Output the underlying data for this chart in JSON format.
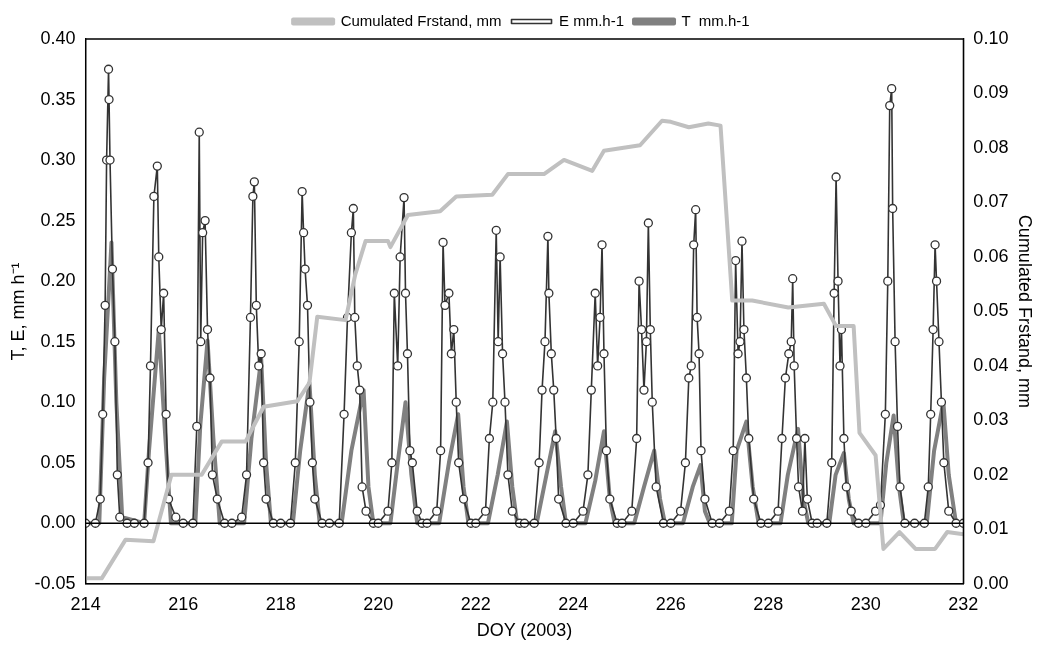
{
  "chart_data": {
    "type": "line",
    "xlabel": "DOY (2003)",
    "ylabel": "T, E, mm h⁻¹",
    "y2label": "Cumulated Frstand, mm",
    "xlim": [
      214,
      232
    ],
    "xticks": [
      214,
      216,
      218,
      220,
      222,
      224,
      226,
      228,
      230,
      232
    ],
    "ylim": [
      -0.05,
      0.4
    ],
    "yticks": [
      {
        "value": -0.05,
        "label": "-0.05"
      },
      {
        "value": 0,
        "label": "0.00"
      },
      {
        "value": 0.05,
        "label": "0.05"
      },
      {
        "value": 0.1,
        "label": "0.10"
      },
      {
        "value": 0.15,
        "label": "0.15"
      },
      {
        "value": 0.2,
        "label": "0.20"
      },
      {
        "value": 0.25,
        "label": "0.25"
      },
      {
        "value": 0.3,
        "label": "0.30"
      },
      {
        "value": 0.35,
        "label": "0.35"
      },
      {
        "value": 0.4,
        "label": "0.40"
      }
    ],
    "y2lim": [
      0,
      0.1
    ],
    "y2ticks": [
      {
        "value": 0,
        "label": "0.00"
      },
      {
        "value": 0.01,
        "label": "0.01"
      },
      {
        "value": 0.02,
        "label": "0.02"
      },
      {
        "value": 0.03,
        "label": "0.03"
      },
      {
        "value": 0.04,
        "label": "0.04"
      },
      {
        "value": 0.05,
        "label": "0.05"
      },
      {
        "value": 0.06,
        "label": "0.06"
      },
      {
        "value": 0.07,
        "label": "0.07"
      },
      {
        "value": 0.08,
        "label": "0.08"
      },
      {
        "value": 0.09,
        "label": "0.09"
      },
      {
        "value": 0.1,
        "label": "0.10"
      }
    ],
    "grid": false,
    "legend": "top",
    "line_style": "solid",
    "ref_lines": [
      {
        "axis": "y",
        "value": 0,
        "color": "#000000"
      }
    ],
    "series": [
      {
        "name": "T  mm.h-1",
        "color": "#808080",
        "marker": "none",
        "x": [
          214,
          214.28,
          214.38,
          214.53,
          214.63,
          214.75,
          215.2,
          215.3,
          215.5,
          215.62,
          215.75,
          216.25,
          216.35,
          216.5,
          216.62,
          216.75,
          217.25,
          217.4,
          217.6,
          217.7,
          217.8,
          218.25,
          218.4,
          218.59,
          218.7,
          218.8,
          219.25,
          219.45,
          219.7,
          219.8,
          219.9,
          220.25,
          220.4,
          220.56,
          220.68,
          220.8,
          221.25,
          221.45,
          221.64,
          221.75,
          221.85,
          222.25,
          222.45,
          222.64,
          222.75,
          222.85,
          223.25,
          223.45,
          223.63,
          223.75,
          223.85,
          224.25,
          224.45,
          224.63,
          224.75,
          224.85,
          225.25,
          225.45,
          225.66,
          225.78,
          225.88,
          226.25,
          226.45,
          226.61,
          226.7,
          226.8,
          227.25,
          227.35,
          227.55,
          227.68,
          227.8,
          228.25,
          228.4,
          228.61,
          228.72,
          228.82,
          229.25,
          229.38,
          229.55,
          229.65,
          229.75,
          230.3,
          230.42,
          230.57,
          230.68,
          230.78,
          231.25,
          231.4,
          231.59,
          231.7,
          231.85,
          232
        ],
        "values": [
          0,
          0,
          0.12,
          0.232,
          0.1,
          0.005,
          0,
          0.06,
          0.16,
          0.08,
          0,
          0,
          0.08,
          0.151,
          0.07,
          0,
          0,
          0.07,
          0.136,
          0.05,
          0,
          0,
          0.06,
          0.116,
          0.04,
          0,
          0,
          0.06,
          0.11,
          0.03,
          0,
          0,
          0.05,
          0.1,
          0.04,
          0,
          0,
          0.05,
          0.09,
          0.03,
          0,
          0,
          0.04,
          0.084,
          0.03,
          0,
          0,
          0.04,
          0.076,
          0.03,
          0,
          0,
          0.035,
          0.076,
          0.02,
          0,
          0,
          0.03,
          0.06,
          0.02,
          0,
          0,
          0.03,
          0.048,
          0.01,
          0,
          0,
          0.06,
          0.084,
          0.03,
          0,
          0,
          0.04,
          0.078,
          0.02,
          0,
          0,
          0.04,
          0.058,
          0.02,
          0,
          0,
          0.05,
          0.089,
          0.03,
          0,
          0,
          0.06,
          0.1,
          0.04,
          0,
          0
        ]
      },
      {
        "name": "E mm.h-1",
        "color": "#333333",
        "marker": "circle",
        "x": [
          214,
          214.2,
          214.3,
          214.35,
          214.4,
          214.43,
          214.47,
          214.48,
          214.5,
          214.55,
          214.6,
          214.65,
          214.7,
          214.85,
          215,
          215.2,
          215.28,
          215.33,
          215.4,
          215.47,
          215.5,
          215.55,
          215.6,
          215.65,
          215.7,
          215.85,
          216,
          216.2,
          216.28,
          216.33,
          216.36,
          216.4,
          216.45,
          216.5,
          216.55,
          216.6,
          216.7,
          216.85,
          217,
          217.2,
          217.3,
          217.38,
          217.43,
          217.46,
          217.5,
          217.55,
          217.6,
          217.65,
          217.7,
          217.85,
          218,
          218.2,
          218.3,
          218.38,
          218.44,
          218.47,
          218.5,
          218.55,
          218.6,
          218.65,
          218.7,
          218.85,
          219,
          219.2,
          219.3,
          219.37,
          219.45,
          219.49,
          219.52,
          219.57,
          219.62,
          219.67,
          219.75,
          219.9,
          220,
          220.2,
          220.28,
          220.33,
          220.4,
          220.45,
          220.53,
          220.56,
          220.6,
          220.65,
          220.7,
          220.8,
          220.9,
          221,
          221.2,
          221.28,
          221.33,
          221.37,
          221.45,
          221.5,
          221.55,
          221.6,
          221.65,
          221.75,
          221.9,
          222,
          222.2,
          222.28,
          222.35,
          222.42,
          222.46,
          222.5,
          222.55,
          222.6,
          222.66,
          222.75,
          222.9,
          223,
          223.2,
          223.3,
          223.36,
          223.42,
          223.48,
          223.5,
          223.55,
          223.6,
          223.65,
          223.7,
          223.85,
          224,
          224.2,
          224.3,
          224.37,
          224.45,
          224.5,
          224.55,
          224.59,
          224.63,
          224.68,
          224.75,
          224.9,
          225,
          225.2,
          225.3,
          225.35,
          225.4,
          225.45,
          225.5,
          225.54,
          225.58,
          225.62,
          225.7,
          225.85,
          226,
          226.2,
          226.3,
          226.37,
          226.42,
          226.47,
          226.51,
          226.54,
          226.58,
          226.62,
          226.7,
          226.85,
          227,
          227.2,
          227.28,
          227.33,
          227.38,
          227.42,
          227.46,
          227.5,
          227.55,
          227.6,
          227.7,
          227.85,
          228,
          228.2,
          228.28,
          228.35,
          228.42,
          228.47,
          228.5,
          228.53,
          228.58,
          228.62,
          228.7,
          228.75,
          228.8,
          228.9,
          229,
          229.2,
          229.3,
          229.35,
          229.39,
          229.43,
          229.47,
          229.5,
          229.55,
          229.6,
          229.7,
          229.85,
          230,
          230.2,
          230.3,
          230.4,
          230.45,
          230.49,
          230.53,
          230.55,
          230.6,
          230.65,
          230.7,
          230.8,
          231,
          231.2,
          231.28,
          231.33,
          231.38,
          231.42,
          231.45,
          231.5,
          231.55,
          231.6,
          231.7,
          231.85,
          232
        ],
        "values": [
          0,
          0,
          0.02,
          0.09,
          0.18,
          0.3,
          0.375,
          0.35,
          0.3,
          0.21,
          0.15,
          0.04,
          0.005,
          0,
          0,
          0,
          0.05,
          0.13,
          0.27,
          0.295,
          0.22,
          0.16,
          0.19,
          0.09,
          0.02,
          0.005,
          0,
          0,
          0.08,
          0.323,
          0.15,
          0.24,
          0.25,
          0.16,
          0.12,
          0.04,
          0.02,
          0,
          0,
          0.005,
          0.04,
          0.17,
          0.27,
          0.282,
          0.18,
          0.13,
          0.14,
          0.05,
          0.02,
          0,
          0,
          0,
          0.05,
          0.15,
          0.274,
          0.24,
          0.21,
          0.18,
          0.1,
          0.05,
          0.02,
          0,
          0,
          0,
          0.09,
          0.17,
          0.24,
          0.26,
          0.17,
          0.13,
          0.11,
          0.03,
          0.01,
          0,
          0,
          0.01,
          0.05,
          0.19,
          0.13,
          0.22,
          0.269,
          0.19,
          0.14,
          0.06,
          0.05,
          0.01,
          0,
          0,
          0.01,
          0.06,
          0.232,
          0.18,
          0.19,
          0.14,
          0.16,
          0.1,
          0.05,
          0.02,
          0,
          0,
          0.01,
          0.07,
          0.1,
          0.242,
          0.15,
          0.22,
          0.14,
          0.1,
          0.04,
          0.01,
          0,
          0,
          0,
          0.05,
          0.11,
          0.15,
          0.237,
          0.19,
          0.14,
          0.11,
          0.07,
          0.02,
          0,
          0,
          0.01,
          0.04,
          0.11,
          0.19,
          0.13,
          0.17,
          0.23,
          0.14,
          0.06,
          0.02,
          0,
          0,
          0.01,
          0.07,
          0.2,
          0.16,
          0.11,
          0.15,
          0.248,
          0.16,
          0.1,
          0.03,
          0,
          0,
          0.01,
          0.05,
          0.12,
          0.13,
          0.23,
          0.259,
          0.17,
          0.14,
          0.06,
          0.02,
          0,
          0,
          0.01,
          0.06,
          0.217,
          0.14,
          0.15,
          0.233,
          0.16,
          0.12,
          0.07,
          0.02,
          0,
          0,
          0.01,
          0.07,
          0.12,
          0.14,
          0.15,
          0.202,
          0.13,
          0.07,
          0.03,
          0.01,
          0.07,
          0.02,
          0,
          0,
          0,
          0.05,
          0.19,
          0.286,
          0.2,
          0.13,
          0.16,
          0.07,
          0.03,
          0.01,
          0,
          0,
          0.01,
          0.015,
          0.09,
          0.2,
          0.345,
          0.359,
          0.26,
          0.15,
          0.08,
          0.03,
          0,
          0,
          0,
          0.03,
          0.09,
          0.16,
          0.23,
          0.2,
          0.15,
          0.1,
          0.05,
          0.01,
          0,
          0
        ]
      },
      {
        "name": "Cumulated Frstand, mm",
        "color": "#c0c0c0",
        "marker": "none",
        "axis": "y2",
        "x": [
          214,
          214.33,
          214.82,
          215.39,
          215.76,
          216.38,
          216.79,
          217.28,
          217.65,
          218.34,
          218.59,
          218.75,
          219.33,
          219.53,
          219.74,
          220.2,
          220.25,
          220.61,
          221.27,
          221.6,
          222.34,
          222.66,
          223.4,
          223.81,
          224.39,
          224.63,
          225.37,
          225.82,
          226,
          226.37,
          226.77,
          227.02,
          227.26,
          227.67,
          228.41,
          229.14,
          229.39,
          229.75,
          229.87,
          230.2,
          230.36,
          230.69,
          231.02,
          231.42,
          231.67,
          232
        ],
        "values": [
          0.001,
          0.001,
          0.0081,
          0.0078,
          0.02,
          0.02,
          0.0261,
          0.0261,
          0.0325,
          0.0335,
          0.0369,
          0.049,
          0.0484,
          0.0568,
          0.0629,
          0.0629,
          0.0618,
          0.0677,
          0.0684,
          0.0711,
          0.0714,
          0.0752,
          0.0752,
          0.0778,
          0.0758,
          0.0795,
          0.0805,
          0.085,
          0.0848,
          0.0838,
          0.0845,
          0.0841,
          0.052,
          0.052,
          0.0507,
          0.0514,
          0.0473,
          0.0473,
          0.0277,
          0.0236,
          0.0064,
          0.0095,
          0.0064,
          0.0064,
          0.0095,
          0.0091
        ]
      }
    ]
  }
}
